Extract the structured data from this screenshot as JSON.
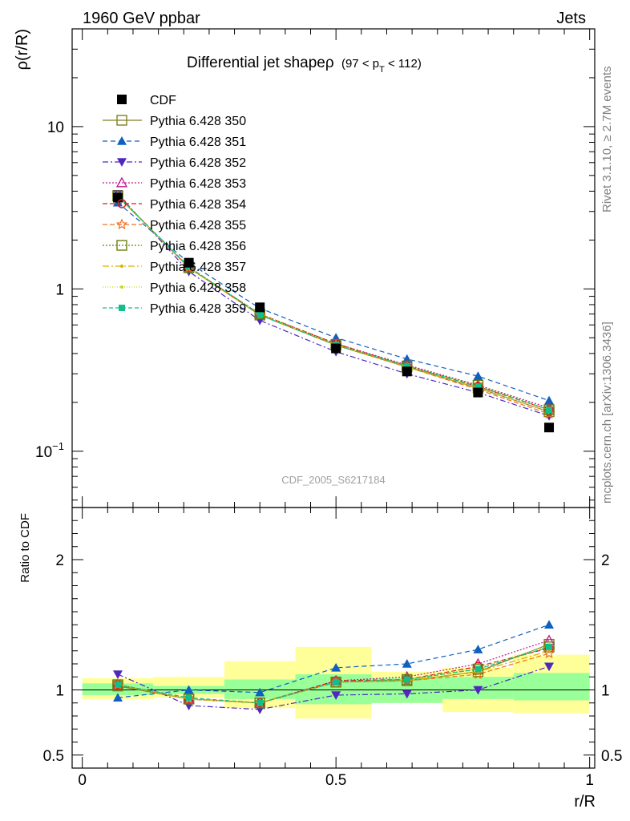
{
  "header": {
    "left": "1960 GeV ppbar",
    "right": "Jets"
  },
  "side_texts": {
    "top": "Rivet 3.1.10, ≥ 2.7M events",
    "bottom": "mcplots.cern.ch [arXiv:1306.3436]"
  },
  "watermark": "CDF_2005_S6217184",
  "title": {
    "main": "Differential jet shapeρ",
    "sub_pre": "(97 < p",
    "sub_sub": "T",
    "sub_post": " < 112)"
  },
  "axes": {
    "ylabel_top": "ρ(r/R)",
    "ylabel_bottom": "Ratio to CDF",
    "xlabel": "r/R",
    "yticks_top": [
      {
        "label_base": "10",
        "label_exp": "−1",
        "value": 0.1
      },
      {
        "label_base": "1",
        "label_exp": "",
        "value": 1
      },
      {
        "label_base": "10",
        "label_exp": "",
        "value": 10
      }
    ],
    "yticks_bottom": [
      {
        "label": "0.5",
        "value": 0.5
      },
      {
        "label": "1",
        "value": 1
      },
      {
        "label": "2",
        "value": 2
      }
    ],
    "xticks": [
      {
        "label": "0",
        "value": 0
      },
      {
        "label": "0.5",
        "value": 0.5
      },
      {
        "label": "1",
        "value": 1
      }
    ]
  },
  "chart_data": {
    "type": "scatter",
    "x": [
      0.07,
      0.21,
      0.35,
      0.5,
      0.64,
      0.78,
      0.92
    ],
    "xlim": [
      -0.02,
      1.01
    ],
    "ylim_top": [
      0.045,
      40
    ],
    "ylog_top": true,
    "ylim_bottom": [
      0.4,
      2.4
    ],
    "grid": false,
    "legend_position": "top-left",
    "data": {
      "name": "CDF",
      "values": [
        3.65,
        1.45,
        0.77,
        0.43,
        0.31,
        0.23,
        0.14
      ],
      "color": "#000000",
      "marker": "square-filled"
    },
    "band_edges": [
      0,
      0.14,
      0.28,
      0.42,
      0.57,
      0.71,
      0.85,
      1.0
    ],
    "band_green": [
      [
        0.96,
        1.05
      ],
      [
        0.97,
        1.03
      ],
      [
        0.93,
        1.08
      ],
      [
        0.89,
        1.12
      ],
      [
        0.9,
        1.09
      ],
      [
        0.93,
        1.1
      ],
      [
        0.92,
        1.13
      ]
    ],
    "band_yellow": [
      [
        0.93,
        1.09
      ],
      [
        0.94,
        1.1
      ],
      [
        0.86,
        1.22
      ],
      [
        0.78,
        1.33
      ],
      [
        0.9,
        1.14
      ],
      [
        0.83,
        1.17
      ],
      [
        0.82,
        1.27
      ]
    ],
    "series": [
      {
        "name": "Pythia 6.428 350",
        "values": [
          3.75,
          1.35,
          0.69,
          0.45,
          0.33,
          0.245,
          0.175
        ],
        "ratio": [
          1.03,
          0.93,
          0.9,
          1.06,
          1.07,
          1.14,
          1.35
        ],
        "color": "#808020",
        "dash": "",
        "marker": "square-open"
      },
      {
        "name": "Pythia 6.428 351",
        "values": [
          3.4,
          1.45,
          0.76,
          0.5,
          0.37,
          0.29,
          0.205
        ],
        "ratio": [
          0.94,
          1.0,
          0.98,
          1.17,
          1.2,
          1.31,
          1.5
        ],
        "color": "#1060c0",
        "dash": "6,4",
        "marker": "triangle-up-filled"
      },
      {
        "name": "Pythia 6.428 352",
        "values": [
          3.85,
          1.28,
          0.64,
          0.41,
          0.3,
          0.23,
          0.165
        ],
        "ratio": [
          1.12,
          0.88,
          0.85,
          0.96,
          0.97,
          1.0,
          1.18
        ],
        "color": "#5028c0",
        "dash": "7,3,2,3",
        "marker": "triangle-down-filled"
      },
      {
        "name": "Pythia 6.428 353",
        "values": [
          3.72,
          1.36,
          0.7,
          0.46,
          0.34,
          0.255,
          0.185
        ],
        "ratio": [
          1.04,
          0.93,
          0.9,
          1.07,
          1.1,
          1.2,
          1.38
        ],
        "color": "#c0188a",
        "dash": "2,2",
        "marker": "triangle-up-open"
      },
      {
        "name": "Pythia 6.428 354",
        "values": [
          3.72,
          1.36,
          0.7,
          0.46,
          0.335,
          0.25,
          0.18
        ],
        "ratio": [
          1.04,
          0.93,
          0.9,
          1.07,
          1.08,
          1.18,
          1.32
        ],
        "color": "#e01818",
        "dash": "6,3",
        "marker": "circle-open"
      },
      {
        "name": "Pythia 6.428 355",
        "values": [
          3.72,
          1.35,
          0.69,
          0.45,
          0.33,
          0.24,
          0.17
        ],
        "ratio": [
          1.04,
          0.93,
          0.9,
          1.06,
          1.07,
          1.12,
          1.28
        ],
        "color": "#f07020",
        "dash": "6,3",
        "marker": "star-open"
      },
      {
        "name": "Pythia 6.428 356",
        "values": [
          3.75,
          1.36,
          0.7,
          0.455,
          0.335,
          0.255,
          0.18
        ],
        "ratio": [
          1.04,
          0.93,
          0.9,
          1.06,
          1.08,
          1.16,
          1.33
        ],
        "color": "#6c7c10",
        "dash": "2,2",
        "marker": "square-open"
      },
      {
        "name": "Pythia 6.428 357",
        "values": [
          3.72,
          1.35,
          0.69,
          0.45,
          0.33,
          0.245,
          0.175
        ],
        "ratio": [
          1.04,
          0.93,
          0.9,
          1.06,
          1.07,
          1.14,
          1.3
        ],
        "color": "#d8b000",
        "dash": "8,3,2,3",
        "marker": "dot"
      },
      {
        "name": "Pythia 6.428 358",
        "values": [
          3.72,
          1.36,
          0.7,
          0.455,
          0.335,
          0.25,
          0.18
        ],
        "ratio": [
          1.04,
          0.93,
          0.9,
          1.06,
          1.08,
          1.17,
          1.34
        ],
        "color": "#c8d820",
        "dash": "1,2",
        "marker": "dot"
      },
      {
        "name": "Pythia 6.428 359",
        "values": [
          3.75,
          1.37,
          0.69,
          0.45,
          0.335,
          0.25,
          0.18
        ],
        "ratio": [
          1.04,
          0.94,
          0.9,
          1.06,
          1.08,
          1.16,
          1.33
        ],
        "color": "#10c08a",
        "dash": "5,3",
        "marker": "square-filled-small"
      }
    ]
  }
}
